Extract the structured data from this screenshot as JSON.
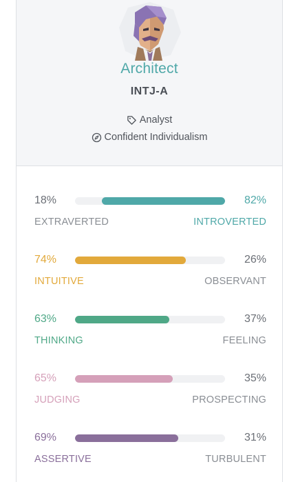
{
  "profile": {
    "type_name": "Architect",
    "type_code": "INTJ-A",
    "role": "Analyst",
    "strategy": "Confident Individualism",
    "avatar_icon": "architect-avatar-icon",
    "role_icon": "tag-icon",
    "strategy_icon": "compass-icon",
    "accent_color": "#4fa8a8"
  },
  "traits": [
    {
      "left_pct": "18%",
      "left_label": "EXTRAVERTED",
      "right_pct": "82%",
      "right_label": "INTROVERTED",
      "dominant": "right",
      "value": 0.82,
      "color": "#4fa8a8"
    },
    {
      "left_pct": "74%",
      "left_label": "INTUITIVE",
      "right_pct": "26%",
      "right_label": "OBSERVANT",
      "dominant": "left",
      "value": 0.74,
      "color": "#e2a93b"
    },
    {
      "left_pct": "63%",
      "left_label": "THINKING",
      "right_pct": "37%",
      "right_label": "FEELING",
      "dominant": "left",
      "value": 0.63,
      "color": "#4fa887"
    },
    {
      "left_pct": "65%",
      "left_label": "JUDGING",
      "right_pct": "35%",
      "right_label": "PROSPECTING",
      "dominant": "left",
      "value": 0.65,
      "color": "#d5a0b9"
    },
    {
      "left_pct": "69%",
      "left_label": "ASSERTIVE",
      "right_pct": "31%",
      "right_label": "TURBULENT",
      "dominant": "left",
      "value": 0.69,
      "color": "#8a6f9b"
    }
  ]
}
